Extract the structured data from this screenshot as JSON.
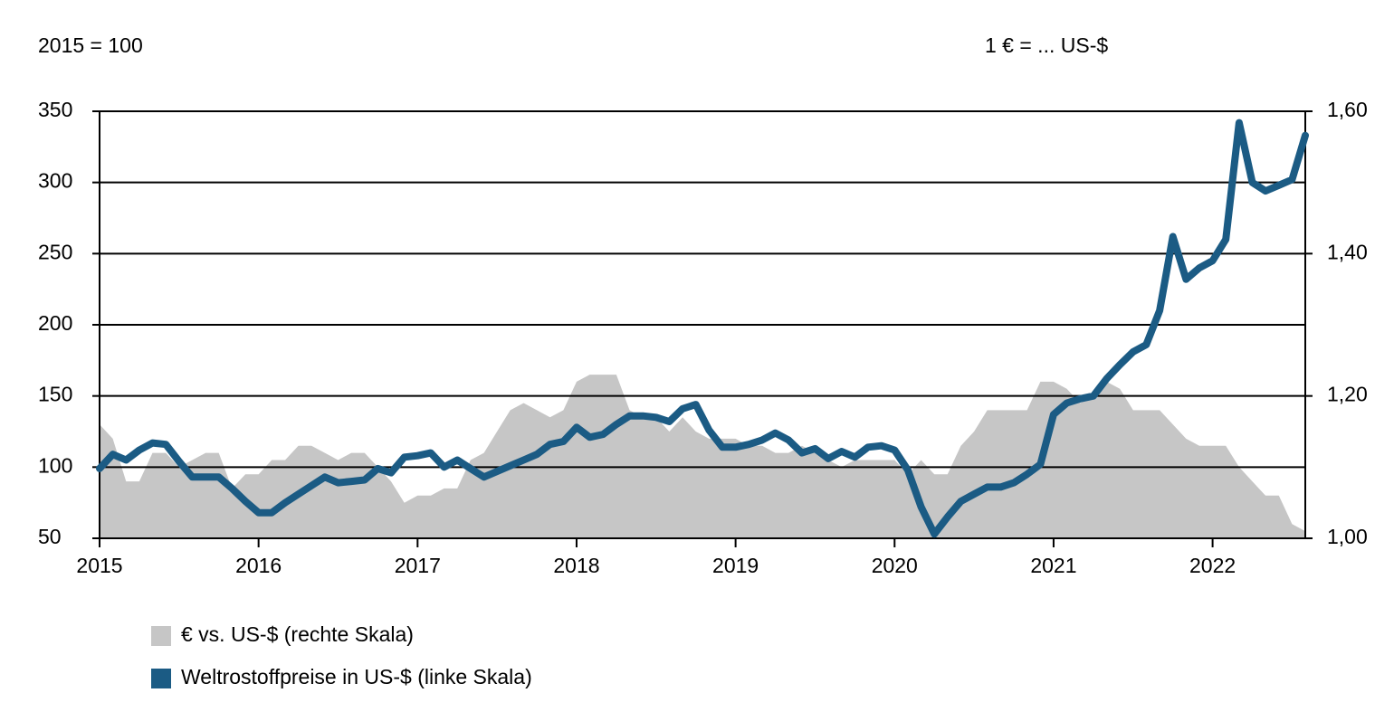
{
  "chart_data": {
    "type": "line",
    "y_label": "2015 = 100",
    "y2_label": "1 € = ... US-$",
    "xlim": [
      2015,
      2022.583
    ],
    "xticks": [
      2015,
      2016,
      2017,
      2018,
      2019,
      2020,
      2021,
      2022
    ],
    "ylim": [
      50,
      350
    ],
    "yticks": [
      50,
      100,
      150,
      200,
      250,
      300,
      350
    ],
    "y2lim": [
      1.0,
      1.6
    ],
    "y2ticks": [
      {
        "value": 1.0,
        "label": "1,00"
      },
      {
        "value": 1.2,
        "label": "1,20"
      },
      {
        "value": 1.4,
        "label": "1,40"
      },
      {
        "value": 1.6,
        "label": "1,60"
      }
    ],
    "grid": true,
    "x": [
      2015,
      2015.083,
      2015.167,
      2015.25,
      2015.333,
      2015.417,
      2015.5,
      2015.583,
      2015.667,
      2015.75,
      2015.833,
      2015.917,
      2016,
      2016.083,
      2016.167,
      2016.25,
      2016.333,
      2016.417,
      2016.5,
      2016.583,
      2016.667,
      2016.75,
      2016.833,
      2016.917,
      2017,
      2017.083,
      2017.167,
      2017.25,
      2017.333,
      2017.417,
      2017.5,
      2017.583,
      2017.667,
      2017.75,
      2017.833,
      2017.917,
      2018,
      2018.083,
      2018.167,
      2018.25,
      2018.333,
      2018.417,
      2018.5,
      2018.583,
      2018.667,
      2018.75,
      2018.833,
      2018.917,
      2019,
      2019.083,
      2019.167,
      2019.25,
      2019.333,
      2019.417,
      2019.5,
      2019.583,
      2019.667,
      2019.75,
      2019.833,
      2019.917,
      2020,
      2020.083,
      2020.167,
      2020.25,
      2020.333,
      2020.417,
      2020.5,
      2020.583,
      2020.667,
      2020.75,
      2020.833,
      2020.917,
      2021,
      2021.083,
      2021.167,
      2021.25,
      2021.333,
      2021.417,
      2021.5,
      2021.583,
      2021.667,
      2021.75,
      2021.833,
      2021.917,
      2022,
      2022.083,
      2022.167,
      2022.25,
      2022.333,
      2022.417,
      2022.5,
      2022.583
    ],
    "series": [
      {
        "name": "€ vs. US-$ (rechte Skala)",
        "color": "#c6c6c6",
        "axis": "y2",
        "kind": "area",
        "values": [
          1.16,
          1.14,
          1.08,
          1.08,
          1.12,
          1.12,
          1.1,
          1.11,
          1.12,
          1.12,
          1.07,
          1.09,
          1.09,
          1.11,
          1.11,
          1.13,
          1.13,
          1.12,
          1.11,
          1.12,
          1.12,
          1.1,
          1.08,
          1.05,
          1.06,
          1.06,
          1.07,
          1.07,
          1.11,
          1.12,
          1.15,
          1.18,
          1.19,
          1.18,
          1.17,
          1.18,
          1.22,
          1.23,
          1.23,
          1.23,
          1.18,
          1.17,
          1.17,
          1.15,
          1.17,
          1.15,
          1.14,
          1.14,
          1.14,
          1.13,
          1.13,
          1.12,
          1.12,
          1.13,
          1.12,
          1.11,
          1.1,
          1.11,
          1.11,
          1.11,
          1.11,
          1.09,
          1.11,
          1.09,
          1.09,
          1.13,
          1.15,
          1.18,
          1.18,
          1.18,
          1.18,
          1.22,
          1.22,
          1.21,
          1.19,
          1.2,
          1.22,
          1.21,
          1.18,
          1.18,
          1.18,
          1.16,
          1.14,
          1.13,
          1.13,
          1.13,
          1.1,
          1.08,
          1.06,
          1.06,
          1.02,
          1.01
        ]
      },
      {
        "name": "Weltrostoffpreise in US-$ (linke Skala)",
        "color": "#1b5b84",
        "kind": "line",
        "values": [
          99,
          109,
          105,
          112,
          117,
          116,
          104,
          93,
          93,
          93,
          85,
          76,
          68,
          68,
          75,
          81,
          87,
          93,
          89,
          90,
          91,
          99,
          96,
          107,
          108,
          110,
          100,
          105,
          99,
          93,
          97,
          101,
          105,
          109,
          116,
          118,
          128,
          121,
          123,
          130,
          136,
          136,
          135,
          132,
          141,
          144,
          126,
          114,
          114,
          116,
          119,
          124,
          119,
          110,
          113,
          106,
          111,
          107,
          114,
          115,
          112,
          98,
          72,
          53,
          65,
          76,
          81,
          86,
          86,
          89,
          95,
          102,
          137,
          145,
          148,
          150,
          162,
          172,
          181,
          186,
          210,
          262,
          232,
          240,
          245,
          260,
          342,
          300,
          294,
          298,
          302,
          333
        ]
      }
    ]
  }
}
